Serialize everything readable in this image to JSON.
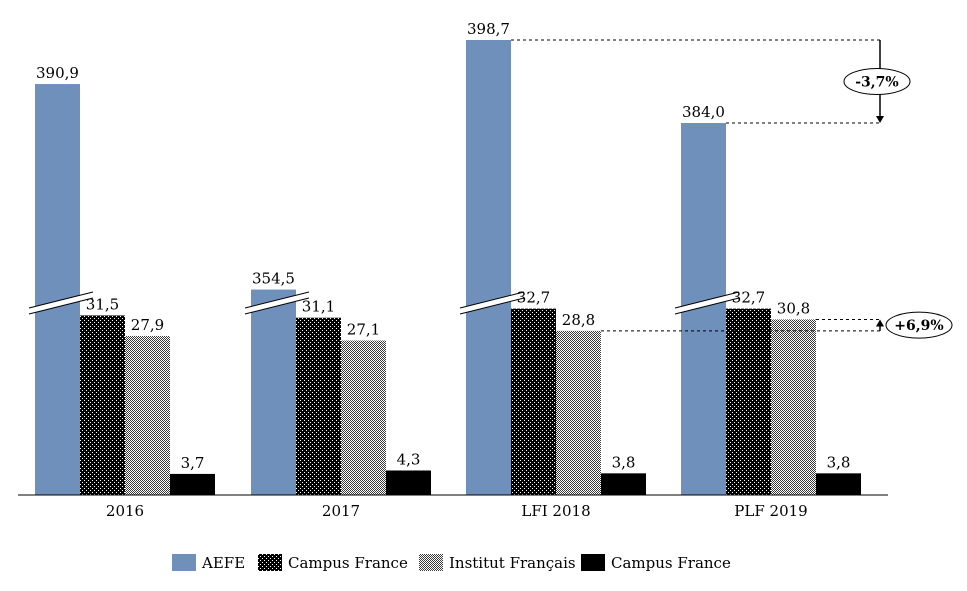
{
  "chart_data": {
    "type": "bar",
    "title": "",
    "xlabel": "",
    "ylabel": "",
    "axis_break": true,
    "grid": false,
    "legend_position": "bottom",
    "categories": [
      "2016",
      "2017",
      "LFI 2018",
      "PLF 2019"
    ],
    "series": [
      {
        "name": "AEFE",
        "values": [
          390.9,
          354.5,
          398.7,
          384.0
        ],
        "labels": [
          "390,9",
          "354,5",
          "398,7",
          "384,0"
        ],
        "color": "#7090bc",
        "pattern": "solid"
      },
      {
        "name": "Campus France",
        "values": [
          31.5,
          31.1,
          32.7,
          32.7
        ],
        "labels": [
          "31,5",
          "31,1",
          "32,7",
          "32,7"
        ],
        "color": "#1a1a1a",
        "pattern": "dense-dots"
      },
      {
        "name": "Institut Français",
        "values": [
          27.9,
          27.1,
          28.8,
          30.8
        ],
        "labels": [
          "27,9",
          "27,1",
          "28,8",
          "30,8"
        ],
        "color": "#cccccc",
        "pattern": "checker"
      },
      {
        "name": "Campus France",
        "values": [
          3.7,
          4.3,
          3.8,
          3.8
        ],
        "labels": [
          "3,7",
          "4,3",
          "3,8",
          "3,8"
        ],
        "color": "#000000",
        "pattern": "solid"
      }
    ],
    "annotations": [
      {
        "text": "-3,7%",
        "series": "AEFE",
        "from": "LFI 2018",
        "to": "PLF 2019",
        "direction": "down"
      },
      {
        "text": "+6,9%",
        "series": "Institut Français",
        "from": "LFI 2018",
        "to": "PLF 2019",
        "direction": "up"
      }
    ]
  }
}
